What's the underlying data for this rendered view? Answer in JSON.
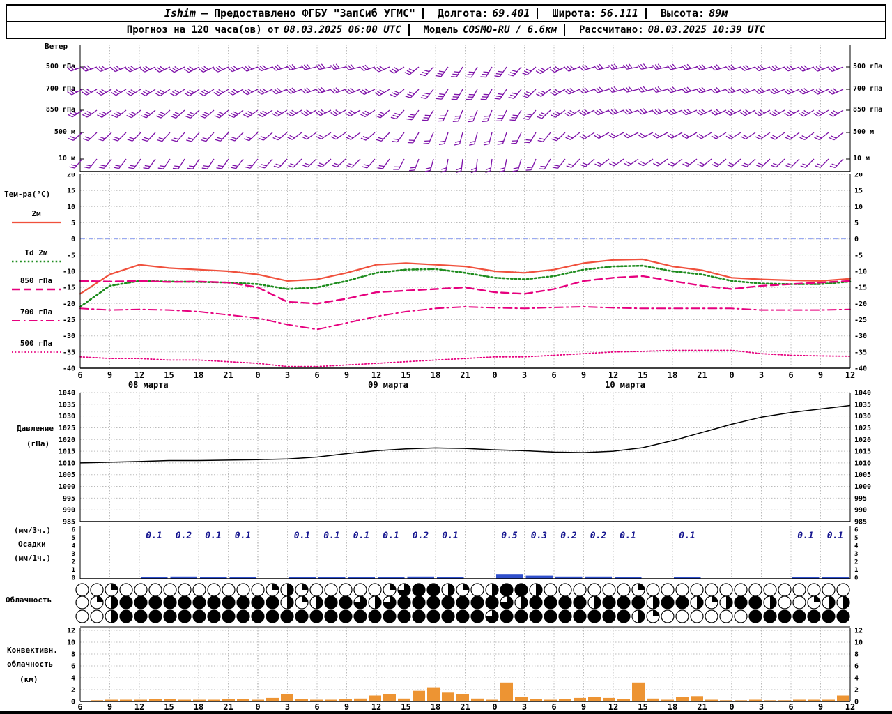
{
  "header": {
    "station": "Ishim",
    "provider": "— Предоставлено ФГБУ \"ЗапСиб УГМС\"",
    "lon_label": "Долгота:",
    "lon": "69.401",
    "lat_label": "Широта:",
    "lat": "56.111",
    "alt_label": "Высота:",
    "alt": "89м",
    "line2_prefix": "Прогноз на 120 часа(ов) от",
    "run": "08.03.2025 06:00 UTC",
    "model_label": "Модель",
    "model": "COSMO-RU / 6.6км",
    "calc_label": "Рассчитано:",
    "calc": "08.03.2025 10:39 UTC"
  },
  "axis": {
    "hours": [
      "6",
      "9",
      "12",
      "15",
      "18",
      "21",
      "0",
      "3",
      "6",
      "9",
      "12",
      "15",
      "18",
      "21",
      "0",
      "3",
      "6",
      "9",
      "12",
      "15",
      "18",
      "21",
      "0",
      "3",
      "6",
      "9",
      "12"
    ],
    "dates": [
      {
        "label": "08 марта",
        "tick": 2.3
      },
      {
        "label": "09 марта",
        "tick": 10.4
      },
      {
        "label": "10 марта",
        "tick": 18.4
      }
    ]
  },
  "chart_data": [
    {
      "type": "wind-barbs",
      "label": "Ветер",
      "levels": [
        "500 гПа",
        "700 гПа",
        "850 гПа",
        "500 м",
        "10 м"
      ],
      "color": "#7d10a8",
      "feathers": [
        3,
        3,
        3,
        2,
        2
      ],
      "angles_deg": [
        [
          250,
          249,
          248,
          247,
          246,
          245,
          244,
          243,
          243,
          244,
          245,
          247,
          249,
          251,
          253,
          255,
          257,
          258,
          258,
          256,
          252,
          246,
          238,
          230,
          222,
          216,
          212,
          210,
          211,
          215,
          221,
          228,
          236,
          243,
          249,
          253,
          256,
          258,
          259,
          259,
          258,
          257,
          256,
          255,
          254,
          253,
          252,
          251,
          250,
          250,
          249,
          249,
          248
        ],
        [
          242,
          241,
          240,
          239,
          238,
          237,
          236,
          236,
          236,
          237,
          239,
          241,
          243,
          245,
          247,
          249,
          250,
          251,
          250,
          248,
          244,
          238,
          231,
          224,
          218,
          213,
          210,
          209,
          210,
          214,
          219,
          226,
          233,
          240,
          246,
          250,
          253,
          255,
          256,
          256,
          255,
          254,
          253,
          252,
          251,
          250,
          249,
          248,
          247,
          246,
          246,
          245,
          245
        ],
        [
          235,
          234,
          233,
          232,
          231,
          230,
          229,
          228,
          228,
          229,
          230,
          232,
          234,
          236,
          238,
          240,
          242,
          243,
          242,
          240,
          236,
          230,
          223,
          216,
          210,
          205,
          202,
          201,
          202,
          206,
          211,
          218,
          226,
          233,
          239,
          244,
          247,
          249,
          250,
          250,
          249,
          248,
          247,
          246,
          245,
          244,
          243,
          242,
          241,
          240,
          239,
          239,
          238
        ],
        [
          228,
          227,
          226,
          225,
          224,
          223,
          222,
          221,
          221,
          222,
          223,
          225,
          227,
          229,
          231,
          233,
          235,
          236,
          235,
          233,
          229,
          223,
          216,
          209,
          203,
          198,
          195,
          194,
          195,
          199,
          204,
          211,
          219,
          226,
          232,
          237,
          240,
          242,
          243,
          243,
          242,
          241,
          240,
          239,
          238,
          237,
          236,
          235,
          234,
          233,
          232,
          232,
          231
        ],
        [
          220,
          219,
          218,
          217,
          216,
          215,
          214,
          213,
          213,
          214,
          215,
          217,
          219,
          221,
          223,
          225,
          227,
          228,
          227,
          225,
          221,
          215,
          208,
          201,
          195,
          190,
          187,
          186,
          187,
          191,
          196,
          203,
          211,
          218,
          224,
          229,
          232,
          234,
          235,
          235,
          234,
          233,
          232,
          231,
          230,
          229,
          228,
          227,
          226,
          225,
          224,
          224,
          223
        ]
      ]
    },
    {
      "type": "line",
      "label": "Тем-ра(°C)",
      "ylim": [
        -40,
        20
      ],
      "yticks": [
        20,
        15,
        10,
        5,
        0,
        -5,
        -10,
        -15,
        -20,
        -25,
        -30,
        -35,
        -40
      ],
      "zero_line_color": "#8fa0f0",
      "series": [
        {
          "name": "2м",
          "color": "#f0503c",
          "style": "solid",
          "values": [
            -17,
            -11,
            -8,
            -9,
            -9.5,
            -10,
            -11,
            -13,
            -12.5,
            -10.5,
            -8,
            -7.5,
            -8,
            -8.5,
            -10,
            -10.5,
            -9.5,
            -7.5,
            -6.5,
            -6.3,
            -8.5,
            -9.7,
            -12,
            -12.5,
            -12.8,
            -13,
            -12.3
          ]
        },
        {
          "name": "Td 2м",
          "color": "#1e8c1e",
          "style": "dotted",
          "values": [
            -21,
            -14.5,
            -13,
            -13.2,
            -13.3,
            -13.5,
            -14,
            -15.5,
            -15,
            -13,
            -10.5,
            -9.5,
            -9.3,
            -10.5,
            -12,
            -12.5,
            -11.5,
            -9.5,
            -8.5,
            -8.3,
            -10,
            -11,
            -13,
            -13.8,
            -14,
            -14,
            -13.2
          ]
        },
        {
          "name": "850 гПа",
          "color": "#e6007e",
          "style": "dashed",
          "values": [
            -13,
            -13.2,
            -13,
            -13.3,
            -13.2,
            -13.5,
            -15,
            -19.5,
            -20,
            -18.5,
            -16.5,
            -16,
            -15.5,
            -15,
            -16.5,
            -17,
            -15.5,
            -13,
            -12,
            -11.5,
            -13,
            -14.5,
            -15.5,
            -14.5,
            -14,
            -13.5,
            -13
          ]
        },
        {
          "name": "700 гПа",
          "color": "#e6007e",
          "style": "dashdot",
          "values": [
            -21.5,
            -22,
            -21.8,
            -22,
            -22.5,
            -23.5,
            -24.5,
            -26.5,
            -28,
            -26,
            -24,
            -22.5,
            -21.5,
            -21,
            -21.3,
            -21.5,
            -21.2,
            -21,
            -21.3,
            -21.5,
            -21.5,
            -21.5,
            -21.5,
            -22,
            -22,
            -22,
            -21.8
          ]
        },
        {
          "name": "500 гПа",
          "color": "#e6007e",
          "style": "fine",
          "values": [
            -36.5,
            -37,
            -37,
            -37.5,
            -37.5,
            -38,
            -38.5,
            -39.5,
            -39.5,
            -39,
            -38.5,
            -38,
            -37.5,
            -37,
            -36.5,
            -36.5,
            -36,
            -35.5,
            -35,
            -34.8,
            -34.5,
            -34.5,
            -34.5,
            -35.5,
            -36,
            -36.2,
            -36.3
          ]
        }
      ]
    },
    {
      "type": "line",
      "label1": "Давление",
      "label2": "(гПа)",
      "ylim": [
        985,
        1040
      ],
      "yticks": [
        1040,
        1035,
        1030,
        1025,
        1020,
        1015,
        1010,
        1005,
        1000,
        995,
        990,
        985
      ],
      "color": "#000000",
      "values": [
        1010,
        1010.3,
        1010.6,
        1011,
        1011,
        1011.2,
        1011.4,
        1011.7,
        1012.5,
        1014,
        1015.2,
        1016,
        1016.4,
        1016.2,
        1015.6,
        1015.2,
        1014.6,
        1014.4,
        1015,
        1016.5,
        1019.5,
        1023,
        1026.5,
        1029.5,
        1031.5,
        1033,
        1034.5
      ]
    },
    {
      "type": "bar",
      "label1": "(мм/3ч.)",
      "label2": "Осадки",
      "label3": "(мм/1ч.)",
      "ylim": [
        0,
        6
      ],
      "yticks": [
        6,
        5,
        4,
        3,
        2,
        1,
        0
      ],
      "bar_color": "#3050cc",
      "value_color": "#15158f",
      "values_3h": [
        null,
        null,
        0.1,
        0.2,
        0.1,
        0.1,
        null,
        0.1,
        0.1,
        0.1,
        0.1,
        0.2,
        0.1,
        null,
        0.5,
        0.3,
        0.2,
        0.2,
        0.1,
        null,
        0.1,
        null,
        null,
        null,
        0.1,
        0.1,
        null
      ]
    },
    {
      "type": "symbols",
      "label": "Облачность",
      "rows_octas_fraction": [
        [
          0,
          0,
          1,
          0,
          0,
          0,
          0,
          0,
          0,
          0,
          0,
          0,
          0,
          1,
          2,
          1,
          0,
          0,
          0,
          0,
          0,
          1,
          3,
          4,
          4,
          2,
          1,
          0,
          2,
          4,
          4,
          2,
          0,
          0,
          0,
          0,
          0,
          0,
          1,
          0,
          0,
          0,
          0,
          0,
          0,
          0,
          0,
          0,
          0,
          0,
          0,
          0,
          0
        ],
        [
          0,
          1,
          2,
          4,
          4,
          4,
          4,
          4,
          4,
          4,
          4,
          4,
          4,
          4,
          2,
          1,
          2,
          4,
          4,
          3,
          2,
          3,
          4,
          4,
          4,
          4,
          4,
          4,
          4,
          3,
          2,
          4,
          4,
          4,
          4,
          2,
          4,
          4,
          4,
          2,
          4,
          4,
          2,
          1,
          2,
          4,
          4,
          2,
          0,
          0,
          1,
          2,
          2
        ],
        [
          0,
          0,
          2,
          4,
          4,
          4,
          4,
          4,
          4,
          4,
          4,
          4,
          4,
          4,
          4,
          4,
          4,
          4,
          4,
          4,
          4,
          4,
          4,
          4,
          4,
          4,
          4,
          4,
          3,
          4,
          4,
          4,
          4,
          4,
          4,
          4,
          4,
          4,
          2,
          1,
          0,
          0,
          0,
          0,
          0,
          0,
          4,
          4,
          4,
          4,
          4,
          4,
          4
        ]
      ]
    },
    {
      "type": "bar",
      "label1": "Конвективн.",
      "label2": "облачность",
      "label3": "(км)",
      "ylim": [
        0,
        12
      ],
      "yticks": [
        12,
        10,
        8,
        6,
        4,
        2,
        0
      ],
      "bar_color": "#ed9433",
      "values_km": [
        0,
        0.2,
        0.3,
        0.3,
        0.3,
        0.4,
        0.4,
        0.3,
        0.3,
        0.3,
        0.4,
        0.4,
        0.3,
        0.6,
        1.2,
        0.4,
        0.3,
        0.3,
        0.4,
        0.5,
        1.0,
        1.2,
        0.5,
        1.8,
        2.4,
        1.5,
        1.2,
        0.5,
        0.3,
        3.2,
        0.8,
        0.4,
        0.3,
        0.4,
        0.6,
        0.8,
        0.6,
        0.4,
        3.2,
        0.5,
        0.3,
        0.8,
        0.9,
        0.3,
        0.2,
        0.2,
        0.3,
        0.2,
        0.2,
        0.3,
        0.3,
        0.3,
        1.0
      ]
    }
  ]
}
